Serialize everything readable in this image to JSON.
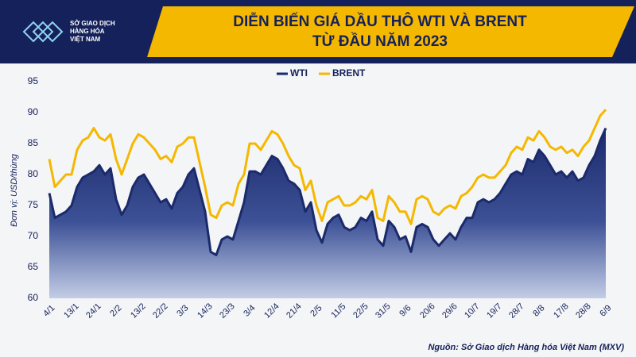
{
  "header": {
    "logo_lines": [
      "SỞ GIAO DỊCH",
      "HÀNG HÓA",
      "VIỆT NAM"
    ]
  },
  "chart_data": {
    "type": "line",
    "title": [
      "DIỄN BIẾN GIÁ DẦU THÔ WTI VÀ BRENT",
      "TỪ ĐẦU NĂM 2023"
    ],
    "y_label": "Đơn vị: USD/thùng",
    "source": "Nguồn: Sở Giao dịch Hàng hóa Việt Nam (MXV)",
    "categories": [
      "4/1",
      null,
      null,
      null,
      "13/1",
      null,
      null,
      null,
      "24/1",
      null,
      null,
      null,
      "2/2",
      null,
      null,
      null,
      "13/2",
      null,
      null,
      null,
      "22/2",
      null,
      null,
      null,
      "3/3",
      null,
      null,
      null,
      "14/3",
      null,
      null,
      null,
      "23/3",
      null,
      null,
      null,
      "3/4",
      null,
      null,
      null,
      "12/4",
      null,
      null,
      null,
      "21/4",
      null,
      null,
      null,
      "2/5",
      null,
      null,
      null,
      "11/5",
      null,
      null,
      null,
      "22/5",
      null,
      null,
      null,
      "31/5",
      null,
      null,
      null,
      "9/6",
      null,
      null,
      null,
      "20/6",
      null,
      null,
      null,
      "29/6",
      null,
      null,
      null,
      "10/7",
      null,
      null,
      null,
      "19/7",
      null,
      null,
      null,
      "28/7",
      null,
      null,
      null,
      "8/8",
      null,
      null,
      null,
      "17/8",
      null,
      null,
      null,
      "28/8",
      null,
      null,
      null,
      "6/9"
    ],
    "series": [
      {
        "name": "WTI",
        "color": "#1b2a6b",
        "area": true,
        "values": [
          77,
          73,
          73.5,
          74,
          75,
          78,
          79.5,
          80,
          80.5,
          81.5,
          80,
          81,
          76,
          73.5,
          75,
          78,
          79.5,
          80,
          78.5,
          77,
          75.5,
          76,
          74.5,
          77,
          78,
          80,
          81,
          77.5,
          74,
          67.5,
          67,
          69.5,
          70,
          69.5,
          72.5,
          75.5,
          80.5,
          80.5,
          80,
          81.5,
          83,
          82.5,
          81,
          79,
          78.5,
          77.5,
          74,
          75.5,
          71,
          69,
          72,
          73,
          73.5,
          71.5,
          71,
          71.5,
          73,
          72.5,
          74,
          69.5,
          68.5,
          72.5,
          71.5,
          69.5,
          70,
          67.5,
          71.5,
          72,
          71.5,
          69.5,
          68.5,
          69.5,
          70.5,
          69.5,
          71.5,
          73,
          73,
          75.5,
          76,
          75.5,
          76,
          77,
          78.5,
          80,
          80.5,
          80,
          82.5,
          82,
          84,
          83,
          81.5,
          80,
          80.5,
          79.5,
          80.5,
          79,
          79.5,
          81.5,
          83,
          85.5,
          87.5
        ]
      },
      {
        "name": "BRENT",
        "color": "#f5b800",
        "area": false,
        "values": [
          82.5,
          78,
          79,
          80,
          80,
          84,
          85.5,
          86,
          87.5,
          86,
          85.5,
          86.5,
          82.5,
          80,
          82.5,
          85,
          86.5,
          86,
          85,
          84,
          82.5,
          83,
          82,
          84.5,
          85,
          86,
          86,
          82,
          78,
          73.5,
          73,
          75,
          75.5,
          75,
          78.5,
          80,
          85,
          85,
          84,
          85.5,
          87,
          86.5,
          85,
          83,
          81.5,
          81,
          77.5,
          79,
          75,
          72.5,
          75.5,
          76,
          76.5,
          75,
          75,
          75.5,
          76.5,
          76,
          77.5,
          73,
          72.5,
          76.5,
          75.5,
          74,
          74,
          72,
          76,
          76.5,
          76,
          74,
          73.5,
          74.5,
          75,
          74.5,
          76.5,
          77,
          78,
          79.5,
          80,
          79.5,
          79.5,
          80.5,
          81.5,
          83.5,
          84.5,
          84,
          86,
          85.5,
          87,
          86,
          84.5,
          84,
          84.5,
          83.5,
          84,
          83,
          84.5,
          85.5,
          87.5,
          89.5,
          90.5
        ]
      }
    ],
    "ylim": [
      60,
      95
    ],
    "yticks": [
      60,
      65,
      70,
      75,
      80,
      85,
      90,
      95
    ],
    "grid": false
  }
}
